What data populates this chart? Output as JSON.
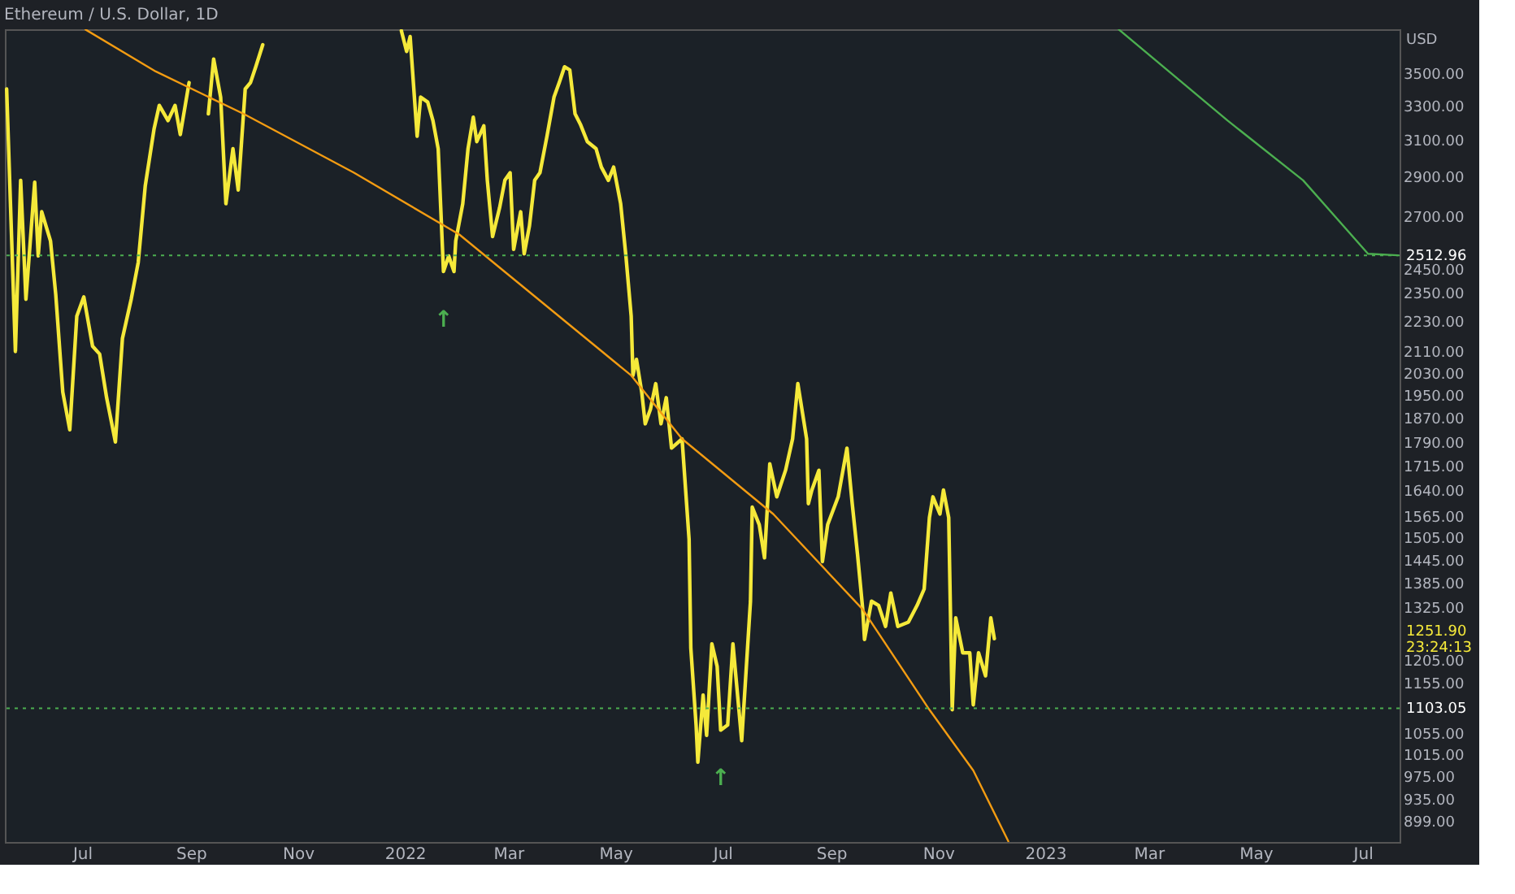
{
  "chart_data": {
    "type": "line",
    "title": "Ethereum / U.S. Dollar, 1D",
    "ylabel": "USD",
    "log": true,
    "grid": false,
    "line_style": "solid",
    "marker": "none",
    "xlim": [
      "2021-05-18",
      "2023-07-22"
    ],
    "xticks": [
      {
        "value": "2021-07-01",
        "label": "Jul"
      },
      {
        "value": "2021-09-01",
        "label": "Sep"
      },
      {
        "value": "2021-11-01",
        "label": "Nov"
      },
      {
        "value": "2022-01-01",
        "label": "2022"
      },
      {
        "value": "2022-03-01",
        "label": "Mar"
      },
      {
        "value": "2022-05-01",
        "label": "May"
      },
      {
        "value": "2022-07-01",
        "label": "Jul"
      },
      {
        "value": "2022-09-01",
        "label": "Sep"
      },
      {
        "value": "2022-11-01",
        "label": "Nov"
      },
      {
        "value": "2023-01-01",
        "label": "2023"
      },
      {
        "value": "2023-03-01",
        "label": "Mar"
      },
      {
        "value": "2023-05-01",
        "label": "May"
      },
      {
        "value": "2023-07-01",
        "label": "Jul"
      }
    ],
    "ylim": [
      865,
      3790
    ],
    "yticks": [
      {
        "value": 3500,
        "label": "3500.00"
      },
      {
        "value": 3300,
        "label": "3300.00"
      },
      {
        "value": 3100,
        "label": "3100.00"
      },
      {
        "value": 2900,
        "label": "2900.00"
      },
      {
        "value": 2700,
        "label": "2700.00"
      },
      {
        "value": 2450,
        "label": "2450.00"
      },
      {
        "value": 2350,
        "label": "2350.00"
      },
      {
        "value": 2230,
        "label": "2230.00"
      },
      {
        "value": 2110,
        "label": "2110.00"
      },
      {
        "value": 2030,
        "label": "2030.00"
      },
      {
        "value": 1950,
        "label": "1950.00"
      },
      {
        "value": 1870,
        "label": "1870.00"
      },
      {
        "value": 1790,
        "label": "1790.00"
      },
      {
        "value": 1715,
        "label": "1715.00"
      },
      {
        "value": 1640,
        "label": "1640.00"
      },
      {
        "value": 1565,
        "label": "1565.00"
      },
      {
        "value": 1505,
        "label": "1505.00"
      },
      {
        "value": 1445,
        "label": "1445.00"
      },
      {
        "value": 1385,
        "label": "1385.00"
      },
      {
        "value": 1325,
        "label": "1325.00"
      },
      {
        "value": 1205,
        "label": "1205.00"
      },
      {
        "value": 1155,
        "label": "1155.00"
      },
      {
        "value": 1055,
        "label": "1055.00"
      },
      {
        "value": 1015,
        "label": "1015.00"
      },
      {
        "value": 975,
        "label": "975.00"
      },
      {
        "value": 935,
        "label": "935.00"
      },
      {
        "value": 899,
        "label": "899.00"
      }
    ],
    "series": [
      {
        "color": "#f5e93a",
        "x": [
          "2021-05-19",
          "2021-05-24",
          "2021-05-27",
          "2021-05-30",
          "2021-06-04",
          "2021-06-06",
          "2021-06-08",
          "2021-06-13",
          "2021-06-16",
          "2021-06-20",
          "2021-06-24",
          "2021-06-28",
          "2021-07-02",
          "2021-07-07",
          "2021-07-11",
          "2021-07-15",
          "2021-07-20",
          "2021-07-24",
          "2021-07-29",
          "2021-08-02",
          "2021-08-06",
          "2021-08-11",
          "2021-08-14",
          "2021-08-19",
          "2021-08-23",
          "2021-08-26",
          "2021-08-31",
          "2021-09-04",
          "2021-09-11",
          "2021-09-14",
          "2021-09-18",
          "2021-09-21",
          "2021-09-25",
          "2021-09-28",
          "2021-10-02",
          "2021-10-05",
          "2021-10-08",
          "2021-10-12",
          "2021-10-21",
          "2021-12-30",
          "2022-01-02",
          "2022-01-04",
          "2022-01-08",
          "2022-01-10",
          "2022-01-14",
          "2022-01-17",
          "2022-01-20",
          "2022-01-23",
          "2022-01-26",
          "2022-01-29",
          "2022-01-30",
          "2022-02-03",
          "2022-02-06",
          "2022-02-09",
          "2022-02-11",
          "2022-02-15",
          "2022-02-17",
          "2022-02-20",
          "2022-02-24",
          "2022-02-27",
          "2022-03-02",
          "2022-03-04",
          "2022-03-08",
          "2022-03-10",
          "2022-03-13",
          "2022-03-16",
          "2022-03-19",
          "2022-03-23",
          "2022-03-27",
          "2022-03-30",
          "2022-04-02",
          "2022-04-05",
          "2022-04-08",
          "2022-04-11",
          "2022-04-15",
          "2022-04-20",
          "2022-04-23",
          "2022-04-27",
          "2022-04-30",
          "2022-05-04",
          "2022-05-07",
          "2022-05-10",
          "2022-05-11",
          "2022-05-13",
          "2022-05-16",
          "2022-05-18",
          "2022-05-21",
          "2022-05-24",
          "2022-05-27",
          "2022-05-30",
          "2022-06-02",
          "2022-06-08",
          "2022-06-12",
          "2022-06-13",
          "2022-06-16",
          "2022-06-17",
          "2022-06-20",
          "2022-06-22",
          "2022-06-25",
          "2022-06-28",
          "2022-06-30",
          "2022-07-04",
          "2022-07-07",
          "2022-07-12",
          "2022-07-17",
          "2022-07-18",
          "2022-07-22",
          "2022-07-25",
          "2022-07-28",
          "2022-08-01",
          "2022-08-06",
          "2022-08-10",
          "2022-08-13",
          "2022-08-18",
          "2022-08-19",
          "2022-08-21",
          "2022-08-25",
          "2022-08-27",
          "2022-08-30",
          "2022-09-05",
          "2022-09-10",
          "2022-09-13",
          "2022-09-16",
          "2022-09-19",
          "2022-09-20",
          "2022-09-24",
          "2022-09-28",
          "2022-10-02",
          "2022-10-05",
          "2022-10-09",
          "2022-10-15",
          "2022-10-20",
          "2022-10-24",
          "2022-10-27",
          "2022-10-29",
          "2022-11-02",
          "2022-11-04",
          "2022-11-07",
          "2022-11-09",
          "2022-11-11",
          "2022-11-15",
          "2022-11-19",
          "2022-11-21",
          "2022-11-24",
          "2022-11-28",
          "2022-12-01",
          "2022-12-03"
        ],
        "values": [
          3400,
          2110,
          2880,
          2320,
          2870,
          2510,
          2720,
          2580,
          2340,
          1960,
          1830,
          2250,
          2330,
          2130,
          2100,
          1940,
          1790,
          2160,
          2320,
          2480,
          2850,
          3160,
          3300,
          3210,
          3300,
          3130,
          3440,
          null,
          3250,
          3590,
          3350,
          2760,
          3050,
          2830,
          3400,
          3440,
          3540,
          3685,
          null,
          3780,
          3640,
          3740,
          3120,
          3350,
          3320,
          3210,
          3050,
          2440,
          2510,
          2440,
          2580,
          2760,
          3050,
          3230,
          3090,
          3180,
          2880,
          2600,
          2740,
          2880,
          2920,
          2540,
          2720,
          2520,
          2650,
          2880,
          2920,
          3120,
          3350,
          3440,
          3540,
          3520,
          3250,
          3190,
          3090,
          3050,
          2950,
          2880,
          2950,
          2760,
          2510,
          2250,
          2020,
          2080,
          1960,
          1850,
          1900,
          1990,
          1850,
          1940,
          1770,
          1800,
          1500,
          1230,
          1070,
          1000,
          1130,
          1050,
          1240,
          1190,
          1060,
          1070,
          1240,
          1040,
          1340,
          1590,
          1540,
          1450,
          1720,
          1620,
          1700,
          1800,
          1990,
          1800,
          1600,
          1640,
          1700,
          1440,
          1540,
          1620,
          1770,
          1600,
          1460,
          1320,
          1250,
          1340,
          1330,
          1280,
          1360,
          1280,
          1290,
          1330,
          1370,
          1560,
          1620,
          1570,
          1640,
          1560,
          1100,
          1300,
          1220,
          1220,
          1110,
          1220,
          1170,
          1300,
          1251.9
        ]
      },
      {
        "color": "#f39c12",
        "x": [
          "2021-07-03",
          "2021-08-12",
          "2021-10-01",
          "2021-12-03",
          "2022-02-01",
          "2022-05-10",
          "2022-06-08",
          "2022-07-30",
          "2022-09-19",
          "2022-10-27",
          "2022-11-21",
          "2022-12-11"
        ],
        "values": [
          3788,
          3510,
          3250,
          2920,
          2610,
          2020,
          1800,
          1570,
          1320,
          1100,
          985,
          866
        ]
      },
      {
        "color": "#4caf50",
        "x": [
          "2023-02-12",
          "2023-04-15",
          "2023-05-28",
          "2023-07-04",
          "2023-07-21"
        ],
        "values": [
          3788,
          3210,
          2880,
          2520,
          2513
        ]
      }
    ],
    "ref_lines": [
      {
        "axis": "y",
        "value": 2512.96,
        "label": "2512.96",
        "color": "#4caf50",
        "line_style": "dotted"
      },
      {
        "axis": "y",
        "value": 1103.05,
        "label": "1103.05",
        "color": "#4caf50",
        "line_style": "dotted"
      }
    ],
    "annotations": [
      "1251.90",
      "23:24:13",
      {
        "text": "↑",
        "x": "2022-01-23",
        "y": 2440
      },
      {
        "text": "↑",
        "x": "2022-06-30",
        "y": 1060
      }
    ]
  }
}
